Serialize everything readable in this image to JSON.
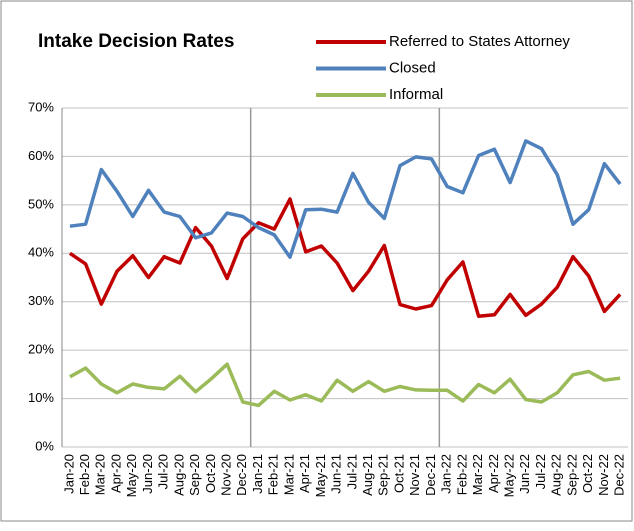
{
  "chart_data": {
    "type": "line",
    "title": "Intake Decision Rates",
    "categories": [
      "Jan-20",
      "Feb-20",
      "Mar-20",
      "Apr-20",
      "May-20",
      "Jun-20",
      "Jul-20",
      "Aug-20",
      "Sep-20",
      "Oct-20",
      "Nov-20",
      "Dec-20",
      "Jan-21",
      "Feb-21",
      "Mar-21",
      "Apr-21",
      "May-21",
      "Jun-21",
      "Jul-21",
      "Aug-21",
      "Sep-21",
      "Oct-21",
      "Nov-21",
      "Dec-21",
      "Jan-22",
      "Feb-22",
      "Mar-22",
      "Apr-22",
      "May-22",
      "Jun-22",
      "Jul-22",
      "Aug-22",
      "Sep-22",
      "Oct-22",
      "Nov-22",
      "Dec-22"
    ],
    "series": [
      {
        "name": "Referred to States Attorney",
        "color": "#c00000",
        "values": [
          40,
          37.8,
          29.5,
          36.3,
          39.5,
          35,
          39.3,
          38,
          45.3,
          41.5,
          34.8,
          43,
          46.3,
          45,
          51.2,
          40.3,
          41.5,
          38,
          32.3,
          36.3,
          41.6,
          29.4,
          28.5,
          29.2,
          34.5,
          38.2,
          27,
          27.3,
          31.5,
          27.2,
          29.5,
          33,
          39.3,
          35.3,
          28,
          31.5
        ]
      },
      {
        "name": "Closed",
        "color": "#4f81bd",
        "values": [
          45.6,
          46,
          57.3,
          52.8,
          47.6,
          53,
          48.5,
          47.6,
          43.2,
          44.2,
          48.3,
          47.6,
          45.3,
          43.8,
          39.2,
          49,
          49.1,
          48.5,
          56.5,
          50.5,
          47.2,
          58.1,
          59.9,
          59.5,
          53.8,
          52.5,
          60.2,
          61.5,
          54.6,
          63.2,
          61.6,
          56.2,
          46,
          49,
          58.5,
          54.3
        ]
      },
      {
        "name": "Informal",
        "color": "#9bbb59",
        "values": [
          14.5,
          16.3,
          13,
          11.2,
          13,
          12.3,
          12,
          14.6,
          11.4,
          14.1,
          17.1,
          9.3,
          8.6,
          11.5,
          9.7,
          10.8,
          9.5,
          13.8,
          11.5,
          13.5,
          11.5,
          12.5,
          11.8,
          11.7,
          11.7,
          9.5,
          12.9,
          11.2,
          14,
          9.8,
          9.3,
          11.2,
          14.9,
          15.6,
          13.8,
          14.2
        ]
      }
    ],
    "ylim": [
      0,
      70
    ],
    "yticks": [
      {
        "value": 0,
        "label": "0%"
      },
      {
        "value": 10,
        "label": "10%"
      },
      {
        "value": 20,
        "label": "20%"
      },
      {
        "value": 30,
        "label": "30%"
      },
      {
        "value": 40,
        "label": "40%"
      },
      {
        "value": 50,
        "label": "50%"
      },
      {
        "value": 60,
        "label": "60%"
      },
      {
        "value": 70,
        "label": "70%"
      }
    ],
    "grid": true,
    "legend": "top-right"
  }
}
